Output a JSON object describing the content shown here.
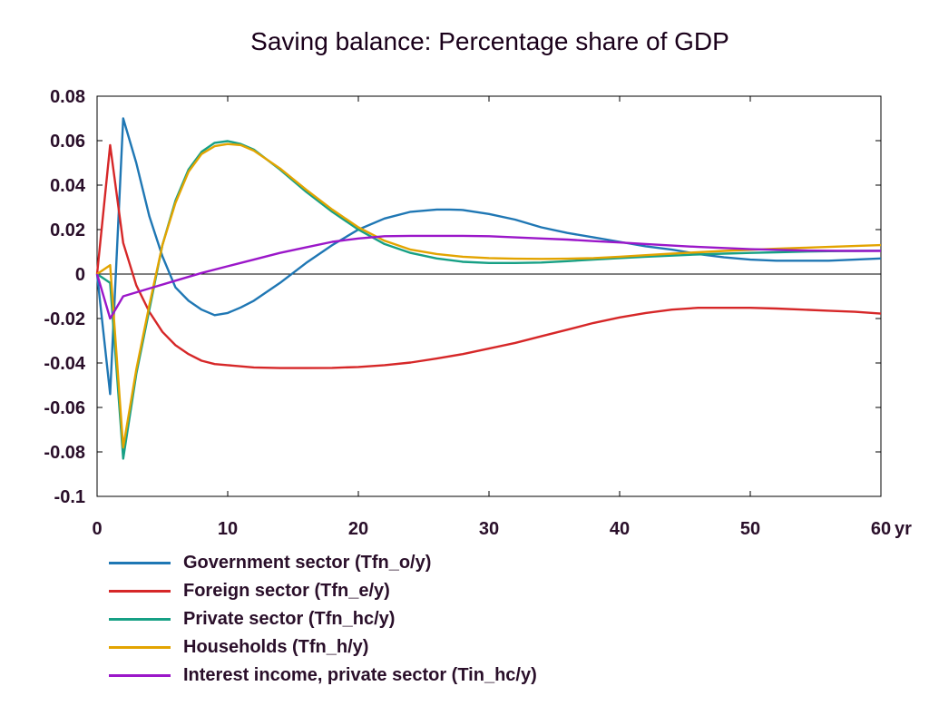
{
  "chart_data": {
    "type": "line",
    "title": "Saving balance: Percentage share of GDP",
    "xlabel": "",
    "ylabel": "",
    "x_unit": "yr",
    "xlim": [
      0,
      60
    ],
    "ylim": [
      -0.1,
      0.08
    ],
    "x_ticks": [
      "0",
      "10",
      "20",
      "30",
      "40",
      "50",
      "60"
    ],
    "y_ticks": [
      "0.08",
      "0.06",
      "0.04",
      "0.02",
      "0",
      "-0.02",
      "-0.04",
      "-0.06",
      "-0.08",
      "-0.1"
    ],
    "zero_line": true,
    "grid": false,
    "legend_position": "bottom-left",
    "series": [
      {
        "name": "Government sector (Tfn_o/y)",
        "color": "#1f77b4",
        "x": [
          0,
          1,
          2,
          3,
          4,
          5,
          6,
          7,
          8,
          9,
          10,
          11,
          12,
          14,
          16,
          18,
          20,
          22,
          24,
          26,
          27,
          28,
          30,
          32,
          34,
          36,
          38,
          40,
          42,
          44,
          46,
          48,
          50,
          52,
          54,
          56,
          58,
          60
        ],
        "y": [
          0,
          -0.054,
          0.07,
          0.05,
          0.026,
          0.008,
          -0.006,
          -0.012,
          -0.016,
          -0.0185,
          -0.0175,
          -0.015,
          -0.012,
          -0.004,
          0.005,
          0.013,
          0.02,
          0.025,
          0.028,
          0.029,
          0.029,
          0.0288,
          0.027,
          0.0245,
          0.021,
          0.0185,
          0.0165,
          0.0145,
          0.0125,
          0.011,
          0.009,
          0.0075,
          0.0065,
          0.006,
          0.006,
          0.006,
          0.0065,
          0.007
        ]
      },
      {
        "name": "Foreign sector (Tfn_e/y)",
        "color": "#d62728",
        "x": [
          0,
          1,
          2,
          3,
          4,
          5,
          6,
          7,
          8,
          9,
          10,
          12,
          14,
          16,
          18,
          20,
          22,
          24,
          26,
          28,
          30,
          32,
          34,
          36,
          38,
          40,
          42,
          44,
          46,
          48,
          50,
          52,
          54,
          56,
          58,
          60
        ],
        "y": [
          0,
          0.058,
          0.014,
          -0.005,
          -0.017,
          -0.026,
          -0.032,
          -0.036,
          -0.039,
          -0.0405,
          -0.041,
          -0.042,
          -0.0423,
          -0.0423,
          -0.0422,
          -0.0418,
          -0.041,
          -0.0398,
          -0.038,
          -0.036,
          -0.0335,
          -0.031,
          -0.028,
          -0.025,
          -0.022,
          -0.0195,
          -0.0175,
          -0.016,
          -0.0152,
          -0.0152,
          -0.0152,
          -0.0155,
          -0.016,
          -0.0165,
          -0.017,
          -0.0178
        ]
      },
      {
        "name": "Private sector (Tfn_hc/y)",
        "color": "#17a085",
        "x": [
          0,
          1,
          2,
          3,
          4,
          5,
          6,
          7,
          8,
          9,
          10,
          11,
          12,
          14,
          16,
          18,
          20,
          22,
          24,
          26,
          28,
          30,
          32,
          34,
          36,
          38,
          40,
          42,
          44,
          46,
          48,
          50,
          52,
          54,
          56,
          58,
          60
        ],
        "y": [
          0,
          -0.004,
          -0.083,
          -0.045,
          -0.016,
          0.013,
          0.033,
          0.047,
          0.055,
          0.059,
          0.0598,
          0.0585,
          0.056,
          0.047,
          0.037,
          0.028,
          0.02,
          0.0135,
          0.0095,
          0.007,
          0.0055,
          0.005,
          0.005,
          0.0052,
          0.0058,
          0.0065,
          0.0072,
          0.0078,
          0.0083,
          0.0088,
          0.0092,
          0.0095,
          0.0098,
          0.0101,
          0.0103,
          0.0104,
          0.0105
        ]
      },
      {
        "name": "Households (Tfn_h/y)",
        "color": "#e3a400",
        "x": [
          0,
          1,
          2,
          3,
          4,
          5,
          6,
          7,
          8,
          9,
          10,
          11,
          12,
          14,
          16,
          18,
          20,
          22,
          24,
          26,
          28,
          30,
          32,
          34,
          36,
          38,
          40,
          42,
          44,
          46,
          48,
          50,
          52,
          54,
          56,
          58,
          60
        ],
        "y": [
          0,
          0.004,
          -0.078,
          -0.043,
          -0.014,
          0.013,
          0.032,
          0.046,
          0.054,
          0.0575,
          0.0585,
          0.058,
          0.0555,
          0.0475,
          0.038,
          0.029,
          0.021,
          0.015,
          0.011,
          0.009,
          0.0078,
          0.0072,
          0.0069,
          0.0068,
          0.0069,
          0.0072,
          0.0078,
          0.0085,
          0.0092,
          0.0098,
          0.0104,
          0.0109,
          0.0114,
          0.0118,
          0.0122,
          0.0126,
          0.013
        ]
      },
      {
        "name": "Interest income, private sector (Tin_hc/y)",
        "color": "#9b17c9",
        "x": [
          0,
          1,
          2,
          4,
          6,
          8,
          10,
          12,
          14,
          16,
          18,
          20,
          22,
          24,
          26,
          28,
          30,
          32,
          34,
          36,
          38,
          40,
          42,
          44,
          46,
          48,
          50,
          52,
          54,
          56,
          58,
          60
        ],
        "y": [
          0,
          -0.02,
          -0.01,
          -0.0065,
          -0.003,
          0.0005,
          0.0035,
          0.0065,
          0.0095,
          0.012,
          0.0145,
          0.016,
          0.017,
          0.0172,
          0.0172,
          0.0172,
          0.017,
          0.0165,
          0.016,
          0.0155,
          0.0148,
          0.0142,
          0.0135,
          0.0128,
          0.0122,
          0.0117,
          0.0112,
          0.0109,
          0.0106,
          0.0105,
          0.0104,
          0.0104
        ]
      }
    ]
  }
}
